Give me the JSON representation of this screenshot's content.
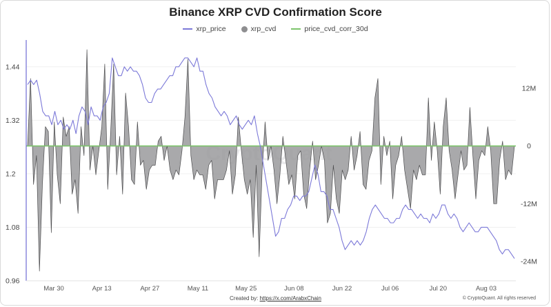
{
  "title": "Binance XRP CVD Confirmation Score",
  "legend": [
    {
      "label": "xrp_price",
      "color": "#7b78d8",
      "kind": "line"
    },
    {
      "label": "xrp_cvd",
      "color": "#8e8e90",
      "kind": "dot"
    },
    {
      "label": "price_cvd_corr_30d",
      "color": "#7cc46a",
      "kind": "line"
    }
  ],
  "watermark": "CryptoQuant",
  "footer": {
    "created_by_label": "Created by:",
    "created_by_link": "https://x.com/ArabxChain"
  },
  "copyright": "© CryptoQuant. All rights reserved",
  "chart_data": {
    "type": "line",
    "title": "Binance XRP CVD Confirmation Score",
    "x_ticks": [
      "Mar 30",
      "Apr 13",
      "Apr 27",
      "May 11",
      "May 25",
      "Jun 08",
      "Jun 22",
      "Jul 06",
      "Jul 20",
      "Aug 03"
    ],
    "left_axis": {
      "ticks": [
        "1.44",
        "1.32",
        "1.2",
        "1.08",
        "0.96"
      ],
      "ylim": [
        0.96,
        1.5
      ]
    },
    "right_axis": {
      "ticks": [
        "12M",
        "0",
        "-12M",
        "-24M"
      ],
      "ylim": [
        -28,
        22
      ],
      "unit": "M"
    },
    "grid": true,
    "legend_position": "top-center",
    "series": [
      {
        "name": "xrp_price",
        "axis": "left",
        "color": "#7b78d8",
        "values": [
          1.4,
          1.41,
          1.4,
          1.41,
          1.38,
          1.34,
          1.33,
          1.33,
          1.31,
          1.34,
          1.31,
          1.32,
          1.3,
          1.31,
          1.3,
          1.32,
          1.29,
          1.33,
          1.35,
          1.34,
          1.31,
          1.35,
          1.33,
          1.33,
          1.32,
          1.35,
          1.36,
          1.38,
          1.46,
          1.44,
          1.42,
          1.42,
          1.44,
          1.43,
          1.44,
          1.43,
          1.43,
          1.42,
          1.4,
          1.37,
          1.36,
          1.36,
          1.38,
          1.39,
          1.39,
          1.4,
          1.41,
          1.42,
          1.42,
          1.44,
          1.44,
          1.45,
          1.46,
          1.46,
          1.45,
          1.44,
          1.46,
          1.43,
          1.43,
          1.4,
          1.38,
          1.37,
          1.35,
          1.34,
          1.33,
          1.34,
          1.33,
          1.31,
          1.32,
          1.33,
          1.31,
          1.3,
          1.31,
          1.32,
          1.31,
          1.33,
          1.29,
          1.26,
          1.22,
          1.18,
          1.14,
          1.1,
          1.06,
          1.07,
          1.1,
          1.1,
          1.12,
          1.13,
          1.15,
          1.15,
          1.14,
          1.15,
          1.15,
          1.16,
          1.19,
          1.22,
          1.2,
          1.16,
          1.16,
          1.15,
          1.12,
          1.12,
          1.1,
          1.08,
          1.05,
          1.03,
          1.04,
          1.05,
          1.04,
          1.05,
          1.04,
          1.05,
          1.07,
          1.1,
          1.12,
          1.13,
          1.12,
          1.11,
          1.1,
          1.1,
          1.09,
          1.09,
          1.1,
          1.1,
          1.12,
          1.13,
          1.12,
          1.12,
          1.11,
          1.1,
          1.11,
          1.1,
          1.1,
          1.09,
          1.11,
          1.1,
          1.11,
          1.13,
          1.13,
          1.11,
          1.1,
          1.11,
          1.1,
          1.08,
          1.07,
          1.08,
          1.09,
          1.08,
          1.07,
          1.07,
          1.08,
          1.08,
          1.08,
          1.07,
          1.06,
          1.05,
          1.03,
          1.02,
          1.03,
          1.03,
          1.02,
          1.01
        ]
      },
      {
        "name": "xrp_cvd",
        "axis": "right",
        "type": "area",
        "color": "#8e8e90",
        "values": [
          0,
          14,
          -8,
          -2,
          -26,
          -8,
          4,
          3,
          -18,
          5,
          -6,
          -12,
          6,
          2,
          4,
          -10,
          -7,
          -14,
          4,
          -2,
          20,
          -5,
          0,
          -6,
          -1,
          4,
          17,
          -9,
          3,
          17,
          -6,
          2,
          -10,
          11,
          4,
          -7,
          -8,
          5,
          -4,
          -3,
          -9,
          -5,
          -4,
          -4,
          1,
          2,
          -3,
          0,
          -5,
          -7,
          -5,
          -6,
          -1,
          6,
          18,
          -2,
          -7,
          -5,
          -6,
          -6,
          -9,
          -4,
          -3,
          -11,
          -7,
          -7,
          -7,
          -5,
          -1,
          -10,
          -6,
          6,
          -1,
          -7,
          -10,
          -7,
          -19,
          -4,
          -23,
          -5,
          5,
          -3,
          0,
          -5,
          -12,
          -6,
          2,
          -3,
          -8,
          -6,
          -11,
          -2,
          -1,
          -10,
          -13,
          -5,
          1,
          -7,
          -4,
          0,
          -3,
          -16,
          -14,
          -4,
          -11,
          -14,
          -5,
          -7,
          -5,
          2,
          -5,
          -2,
          3,
          -8,
          -9,
          -3,
          -1,
          10,
          14,
          -8,
          2,
          -2,
          1,
          -11,
          -4,
          -2,
          2,
          -5,
          -9,
          -13,
          -5,
          -7,
          -4,
          -6,
          -6,
          10,
          -3,
          5,
          -1,
          -10,
          4,
          10,
          -1,
          -5,
          -11,
          -6,
          -1,
          -5,
          -4,
          8,
          -2,
          -11,
          -3,
          -1,
          -2,
          4,
          -1,
          -12,
          -12,
          -3,
          1,
          -7,
          -5,
          -6,
          0
        ]
      },
      {
        "name": "price_cvd_corr_30d",
        "axis": "right",
        "color": "#7cc46a",
        "values": [
          0,
          0
        ]
      }
    ]
  }
}
